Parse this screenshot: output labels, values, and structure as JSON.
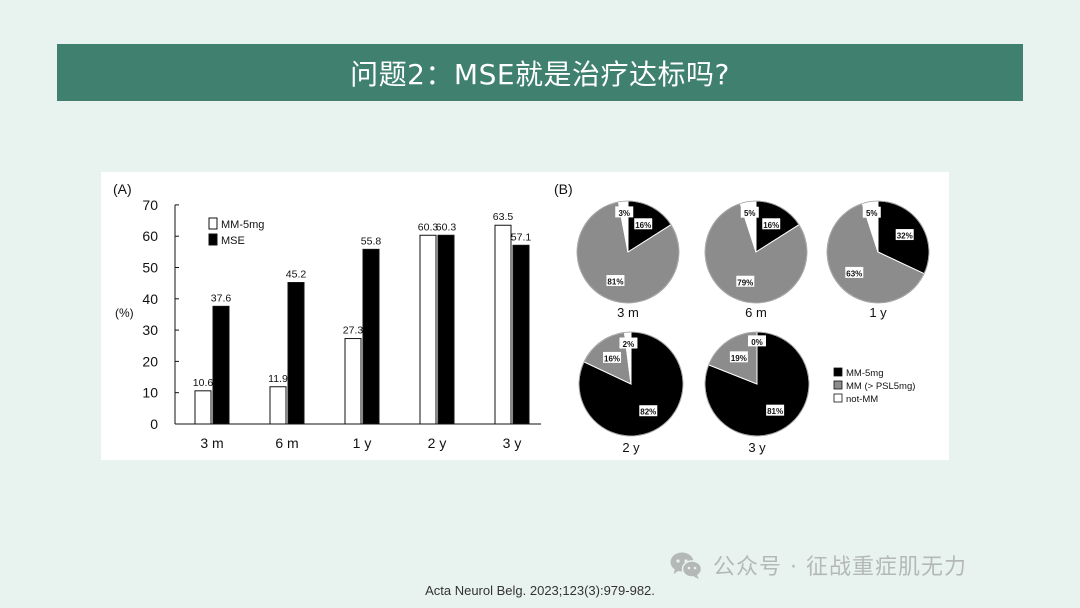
{
  "slide": {
    "title": "问题2：MSE就是治疗达标吗?",
    "citation": "Acta Neurol Belg. 2023;123(3):979-982.",
    "watermark": "公众号 · 征战重症肌无力"
  },
  "chart_data": [
    {
      "type": "bar",
      "panel_label": "(A)",
      "ylabel": "(%)",
      "ylim": [
        0,
        70
      ],
      "yticks": [
        0,
        10,
        20,
        30,
        40,
        50,
        60,
        70
      ],
      "categories": [
        "3 m",
        "6 m",
        "1 y",
        "2 y",
        "3 y"
      ],
      "legend_position": "top-left",
      "series": [
        {
          "name": "MM-5mg",
          "color": "#ffffff",
          "values": [
            10.6,
            11.9,
            27.3,
            60.3,
            63.5
          ],
          "labels": [
            "10.6",
            "11.9",
            "27.3",
            "60.3",
            "63.5"
          ]
        },
        {
          "name": "MSE",
          "color": "#000000",
          "values": [
            37.6,
            45.2,
            55.8,
            60.3,
            57.1
          ],
          "labels": [
            "37.6",
            "45.2",
            "55.8",
            "60.3",
            "57.1"
          ]
        }
      ]
    },
    {
      "type": "pie",
      "panel_label": "(B)",
      "legend": [
        {
          "name": "MM-5mg",
          "color": "#000000"
        },
        {
          "name": "MM (> PSL5mg)",
          "color": "#8c8c8c"
        },
        {
          "name": "not-MM",
          "color": "#ffffff"
        }
      ],
      "pies": [
        {
          "label": "3 m",
          "slices": [
            {
              "category": "MM-5mg",
              "value": 16,
              "text": "16%"
            },
            {
              "category": "MM (> PSL5mg)",
              "value": 81,
              "text": "81%"
            },
            {
              "category": "not-MM",
              "value": 3,
              "text": "3%"
            }
          ]
        },
        {
          "label": "6 m",
          "slices": [
            {
              "category": "MM-5mg",
              "value": 16,
              "text": "16%"
            },
            {
              "category": "MM (> PSL5mg)",
              "value": 79,
              "text": "79%"
            },
            {
              "category": "not-MM",
              "value": 5,
              "text": "5%"
            }
          ]
        },
        {
          "label": "1 y",
          "slices": [
            {
              "category": "MM-5mg",
              "value": 32,
              "text": "32%"
            },
            {
              "category": "MM (> PSL5mg)",
              "value": 63,
              "text": "63%"
            },
            {
              "category": "not-MM",
              "value": 5,
              "text": "5%"
            }
          ]
        },
        {
          "label": "2 y",
          "slices": [
            {
              "category": "MM-5mg",
              "value": 82,
              "text": "82%"
            },
            {
              "category": "MM (> PSL5mg)",
              "value": 16,
              "text": "16%"
            },
            {
              "category": "not-MM",
              "value": 2,
              "text": "2%"
            }
          ]
        },
        {
          "label": "3 y",
          "slices": [
            {
              "category": "MM-5mg",
              "value": 81,
              "text": "81%"
            },
            {
              "category": "MM (> PSL5mg)",
              "value": 19,
              "text": "19%"
            },
            {
              "category": "not-MM",
              "value": 0,
              "text": "0%"
            }
          ]
        }
      ]
    }
  ]
}
